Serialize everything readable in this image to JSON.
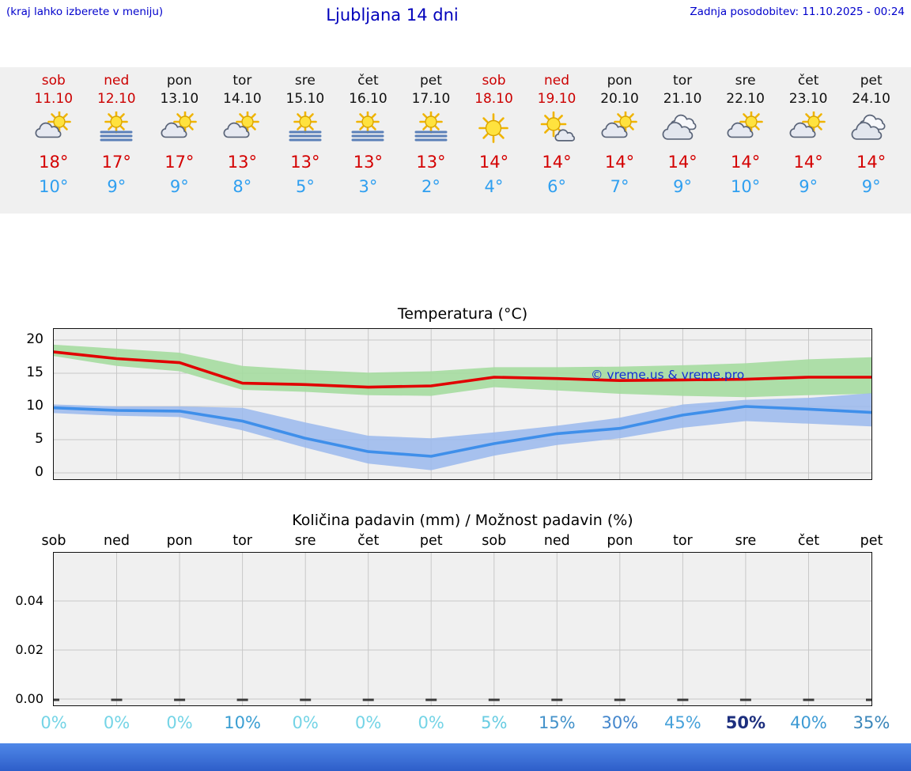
{
  "header": {
    "menu_note": "(kraj lahko izberete v meniju)",
    "title": "Ljubljana 14 dni",
    "last_update": "Zadnja posodobitev: 11.10.2025 - 00:24"
  },
  "colors": {
    "accent_blue": "#0000cc",
    "high_temp_red": "#d40000",
    "low_temp_blue": "#2f9ff0",
    "weekend_red": "#cc0000",
    "strip_bg": "#f0f0f0",
    "plot_bg": "#f0f0f0",
    "grid": "#c8c8c8",
    "band_green": "#a5dba0",
    "band_blue": "#9ab9ed",
    "line_red": "#e10000",
    "line_blue": "#3f8fea",
    "bottom_bar": "#3a6fd8"
  },
  "forecast_days": [
    {
      "name": "sob",
      "date": "11.10",
      "weekend": true,
      "icon": "partly-cloudy",
      "high": "18°",
      "low": "10°",
      "precip_prob": "0%",
      "prob_color": "#74d4e6"
    },
    {
      "name": "ned",
      "date": "12.10",
      "weekend": true,
      "icon": "fog-sun",
      "high": "17°",
      "low": "9°",
      "precip_prob": "0%",
      "prob_color": "#74d4e6"
    },
    {
      "name": "pon",
      "date": "13.10",
      "weekend": false,
      "icon": "partly-cloudy",
      "high": "17°",
      "low": "9°",
      "precip_prob": "0%",
      "prob_color": "#74d4e6"
    },
    {
      "name": "tor",
      "date": "14.10",
      "weekend": false,
      "icon": "partly-cloudy",
      "high": "13°",
      "low": "8°",
      "precip_prob": "10%",
      "prob_color": "#3a9ed2"
    },
    {
      "name": "sre",
      "date": "15.10",
      "weekend": false,
      "icon": "fog-sun",
      "high": "13°",
      "low": "5°",
      "precip_prob": "0%",
      "prob_color": "#74d4e6"
    },
    {
      "name": "čet",
      "date": "16.10",
      "weekend": false,
      "icon": "fog-sun",
      "high": "13°",
      "low": "3°",
      "precip_prob": "0%",
      "prob_color": "#74d4e6"
    },
    {
      "name": "pet",
      "date": "17.10",
      "weekend": false,
      "icon": "fog-sun",
      "high": "13°",
      "low": "2°",
      "precip_prob": "0%",
      "prob_color": "#74d4e6"
    },
    {
      "name": "sob",
      "date": "18.10",
      "weekend": true,
      "icon": "sunny",
      "high": "14°",
      "low": "4°",
      "precip_prob": "5%",
      "prob_color": "#68cce2"
    },
    {
      "name": "ned",
      "date": "19.10",
      "weekend": true,
      "icon": "mostly-sunny",
      "high": "14°",
      "low": "6°",
      "precip_prob": "15%",
      "prob_color": "#4392ca"
    },
    {
      "name": "pon",
      "date": "20.10",
      "weekend": false,
      "icon": "partly-cloudy",
      "high": "14°",
      "low": "7°",
      "precip_prob": "30%",
      "prob_color": "#4386cc"
    },
    {
      "name": "tor",
      "date": "21.10",
      "weekend": false,
      "icon": "cloudy",
      "high": "14°",
      "low": "9°",
      "precip_prob": "45%",
      "prob_color": "#47a2da"
    },
    {
      "name": "sre",
      "date": "22.10",
      "weekend": false,
      "icon": "partly-cloudy",
      "high": "14°",
      "low": "10°",
      "precip_prob": "50%",
      "prob_color": "#1d2f7e"
    },
    {
      "name": "čet",
      "date": "23.10",
      "weekend": false,
      "icon": "partly-cloudy",
      "high": "14°",
      "low": "9°",
      "precip_prob": "40%",
      "prob_color": "#3d9ad4"
    },
    {
      "name": "pet",
      "date": "24.10",
      "weekend": false,
      "icon": "cloudy",
      "high": "14°",
      "low": "9°",
      "precip_prob": "35%",
      "prob_color": "#3a86ba"
    }
  ],
  "temperature_chart": {
    "title": "Temperatura (°C)",
    "watermark": "© vreme.us & vreme.pro"
  },
  "precip_chart": {
    "title": "Količina padavin (mm) / Možnost padavin (%)"
  },
  "chart_data": [
    {
      "type": "line",
      "title": "Temperatura (°C)",
      "x": [
        "sob 11.10",
        "ned 12.10",
        "pon 13.10",
        "tor 14.10",
        "sre 15.10",
        "čet 16.10",
        "pet 17.10",
        "sob 18.10",
        "ned 19.10",
        "pon 20.10",
        "tor 21.10",
        "sre 22.10",
        "čet 23.10",
        "pet 24.10"
      ],
      "ylabel": "°C",
      "ylim": [
        -1,
        21.7
      ],
      "yticks": [
        0,
        5,
        10,
        15,
        20
      ],
      "grid": true,
      "series": [
        {
          "name": "temp-max",
          "color": "#e10000",
          "values": [
            18.2,
            17.2,
            16.6,
            13.5,
            13.3,
            12.9,
            13.1,
            14.4,
            14.2,
            13.9,
            14.0,
            14.1,
            14.4,
            14.4
          ]
        },
        {
          "name": "temp-max-range-upper",
          "color": "#a5dba0",
          "values": [
            19.3,
            18.7,
            18.1,
            16.1,
            15.5,
            15.1,
            15.3,
            15.9,
            15.9,
            16.0,
            16.2,
            16.5,
            17.1,
            17.4
          ]
        },
        {
          "name": "temp-max-range-lower",
          "color": "#a5dba0",
          "values": [
            17.6,
            16.1,
            15.3,
            12.5,
            12.2,
            11.7,
            11.6,
            12.9,
            12.4,
            11.9,
            11.6,
            11.4,
            11.7,
            11.9
          ]
        },
        {
          "name": "temp-min",
          "color": "#3f8fea",
          "values": [
            9.8,
            9.4,
            9.3,
            7.8,
            5.2,
            3.2,
            2.5,
            4.4,
            5.9,
            6.7,
            8.7,
            10.0,
            9.6,
            9.1
          ]
        },
        {
          "name": "temp-min-range-upper",
          "color": "#9ab9ed",
          "values": [
            10.3,
            10.0,
            10.0,
            9.8,
            7.6,
            5.6,
            5.2,
            6.1,
            7.1,
            8.3,
            10.3,
            11.0,
            11.3,
            12.0
          ]
        },
        {
          "name": "temp-min-range-lower",
          "color": "#9ab9ed",
          "values": [
            9.0,
            8.6,
            8.4,
            6.4,
            3.8,
            1.4,
            0.4,
            2.6,
            4.2,
            5.2,
            6.8,
            7.8,
            7.4,
            7.0
          ]
        }
      ]
    },
    {
      "type": "bar",
      "title": "Količina padavin (mm) / Možnost padavin (%)",
      "categories": [
        "sob",
        "ned",
        "pon",
        "tor",
        "sre",
        "čet",
        "pet",
        "sob",
        "ned",
        "pon",
        "tor",
        "sre",
        "čet",
        "pet"
      ],
      "precip_mm": [
        0,
        0,
        0,
        0,
        0,
        0,
        0,
        0,
        0,
        0,
        0,
        0,
        0,
        0
      ],
      "precip_probability_pct": [
        0,
        0,
        0,
        10,
        0,
        0,
        0,
        5,
        15,
        30,
        45,
        50,
        40,
        35
      ],
      "ylim": [
        0,
        0.055
      ],
      "yticks": [
        "0.00",
        "0.02",
        "0.04"
      ],
      "grid": true
    }
  ]
}
